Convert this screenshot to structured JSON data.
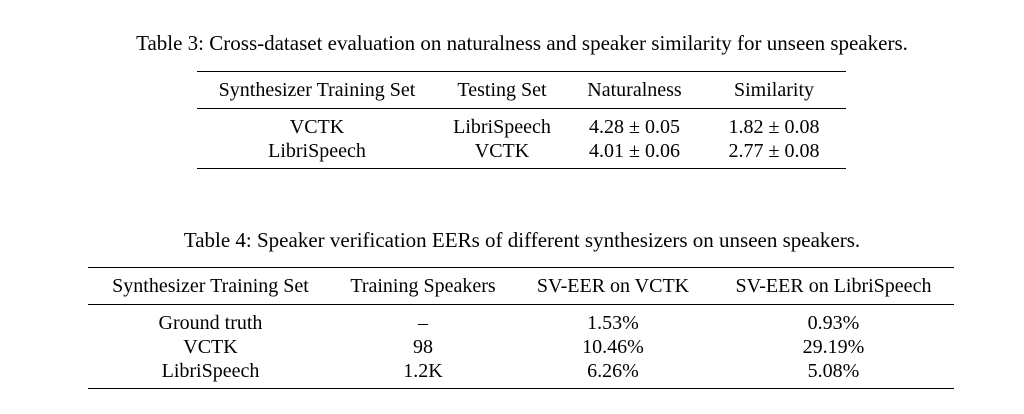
{
  "table3": {
    "caption": "Table 3: Cross-dataset evaluation on naturalness and speaker similarity for unseen speakers.",
    "headers": [
      "Synthesizer Training Set",
      "Testing Set",
      "Naturalness",
      "Similarity"
    ],
    "rows": [
      [
        "VCTK",
        "LibriSpeech",
        "4.28 ± 0.05",
        "1.82 ± 0.08"
      ],
      [
        "LibriSpeech",
        "VCTK",
        "4.01 ± 0.06",
        "2.77 ± 0.08"
      ]
    ]
  },
  "table4": {
    "caption": "Table 4: Speaker verification EERs of different synthesizers on unseen speakers.",
    "headers": [
      "Synthesizer Training Set",
      "Training Speakers",
      "SV-EER on VCTK",
      "SV-EER on LibriSpeech"
    ],
    "rows": [
      [
        "Ground truth",
        "–",
        "1.53%",
        "0.93%"
      ],
      [
        "VCTK",
        "98",
        "10.46%",
        "29.19%"
      ],
      [
        "LibriSpeech",
        "1.2K",
        "6.26%",
        "5.08%"
      ]
    ]
  }
}
